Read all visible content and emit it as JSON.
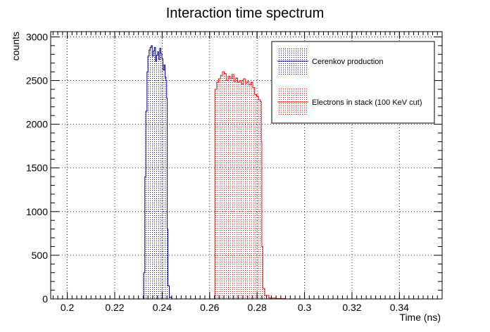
{
  "chart_data": {
    "type": "histogram",
    "title": "Interaction time spectrum",
    "xlabel": "Time (ns)",
    "ylabel": "counts",
    "xlim": [
      0.193,
      0.358
    ],
    "ylim": [
      0,
      3060
    ],
    "x_ticks": [
      0.2,
      0.22,
      0.24,
      0.26,
      0.28,
      0.3,
      0.32,
      0.34
    ],
    "x_tick_labels": [
      "0.2",
      "0.22",
      "0.24",
      "0.26",
      "0.28",
      "0.3",
      "0.32",
      "0.34"
    ],
    "y_ticks": [
      0,
      500,
      1000,
      1500,
      2000,
      2500,
      3000
    ],
    "y_tick_labels": [
      "0",
      "500",
      "1000",
      "1500",
      "2000",
      "2500",
      "3000"
    ],
    "grid": true,
    "legend_position": "top-right",
    "series": [
      {
        "name": "Cerenkov production",
        "color": "#00008b",
        "fill_pattern": "dense-dots",
        "points": [
          [
            0.2318,
            0
          ],
          [
            0.2322,
            300
          ],
          [
            0.2327,
            1400
          ],
          [
            0.2331,
            2150
          ],
          [
            0.2336,
            2600
          ],
          [
            0.234,
            2780
          ],
          [
            0.2345,
            2850
          ],
          [
            0.2349,
            2880
          ],
          [
            0.2354,
            2900
          ],
          [
            0.2358,
            2780
          ],
          [
            0.2363,
            2840
          ],
          [
            0.2367,
            2880
          ],
          [
            0.2372,
            2720
          ],
          [
            0.2376,
            2790
          ],
          [
            0.2381,
            2830
          ],
          [
            0.2385,
            2740
          ],
          [
            0.239,
            2870
          ],
          [
            0.2394,
            2810
          ],
          [
            0.2399,
            2750
          ],
          [
            0.2403,
            2620
          ],
          [
            0.2408,
            2680
          ],
          [
            0.2412,
            2540
          ],
          [
            0.2416,
            2500
          ],
          [
            0.2419,
            2300
          ],
          [
            0.2421,
            800
          ],
          [
            0.2424,
            150
          ],
          [
            0.243,
            20
          ],
          [
            0.244,
            0
          ]
        ]
      },
      {
        "name": "Electrons in stack (100 KeV cut)",
        "color": "#ff0000",
        "fill_pattern": "dense-dots",
        "points": [
          [
            0.2618,
            0
          ],
          [
            0.2622,
            2400
          ],
          [
            0.263,
            2480
          ],
          [
            0.2638,
            2520
          ],
          [
            0.2646,
            2560
          ],
          [
            0.2654,
            2600
          ],
          [
            0.2662,
            2580
          ],
          [
            0.267,
            2500
          ],
          [
            0.2678,
            2550
          ],
          [
            0.2686,
            2520
          ],
          [
            0.2694,
            2570
          ],
          [
            0.2702,
            2490
          ],
          [
            0.271,
            2530
          ],
          [
            0.2718,
            2480
          ],
          [
            0.2726,
            2500
          ],
          [
            0.2734,
            2460
          ],
          [
            0.2742,
            2520
          ],
          [
            0.275,
            2470
          ],
          [
            0.2758,
            2490
          ],
          [
            0.2766,
            2450
          ],
          [
            0.2774,
            2480
          ],
          [
            0.2782,
            2420
          ],
          [
            0.279,
            2340
          ],
          [
            0.2798,
            2320
          ],
          [
            0.2806,
            2280
          ],
          [
            0.2814,
            2260
          ],
          [
            0.2818,
            1800
          ],
          [
            0.282,
            600
          ],
          [
            0.2824,
            120
          ],
          [
            0.2832,
            40
          ],
          [
            0.285,
            10
          ],
          [
            0.288,
            5
          ],
          [
            0.292,
            0
          ]
        ]
      }
    ]
  }
}
